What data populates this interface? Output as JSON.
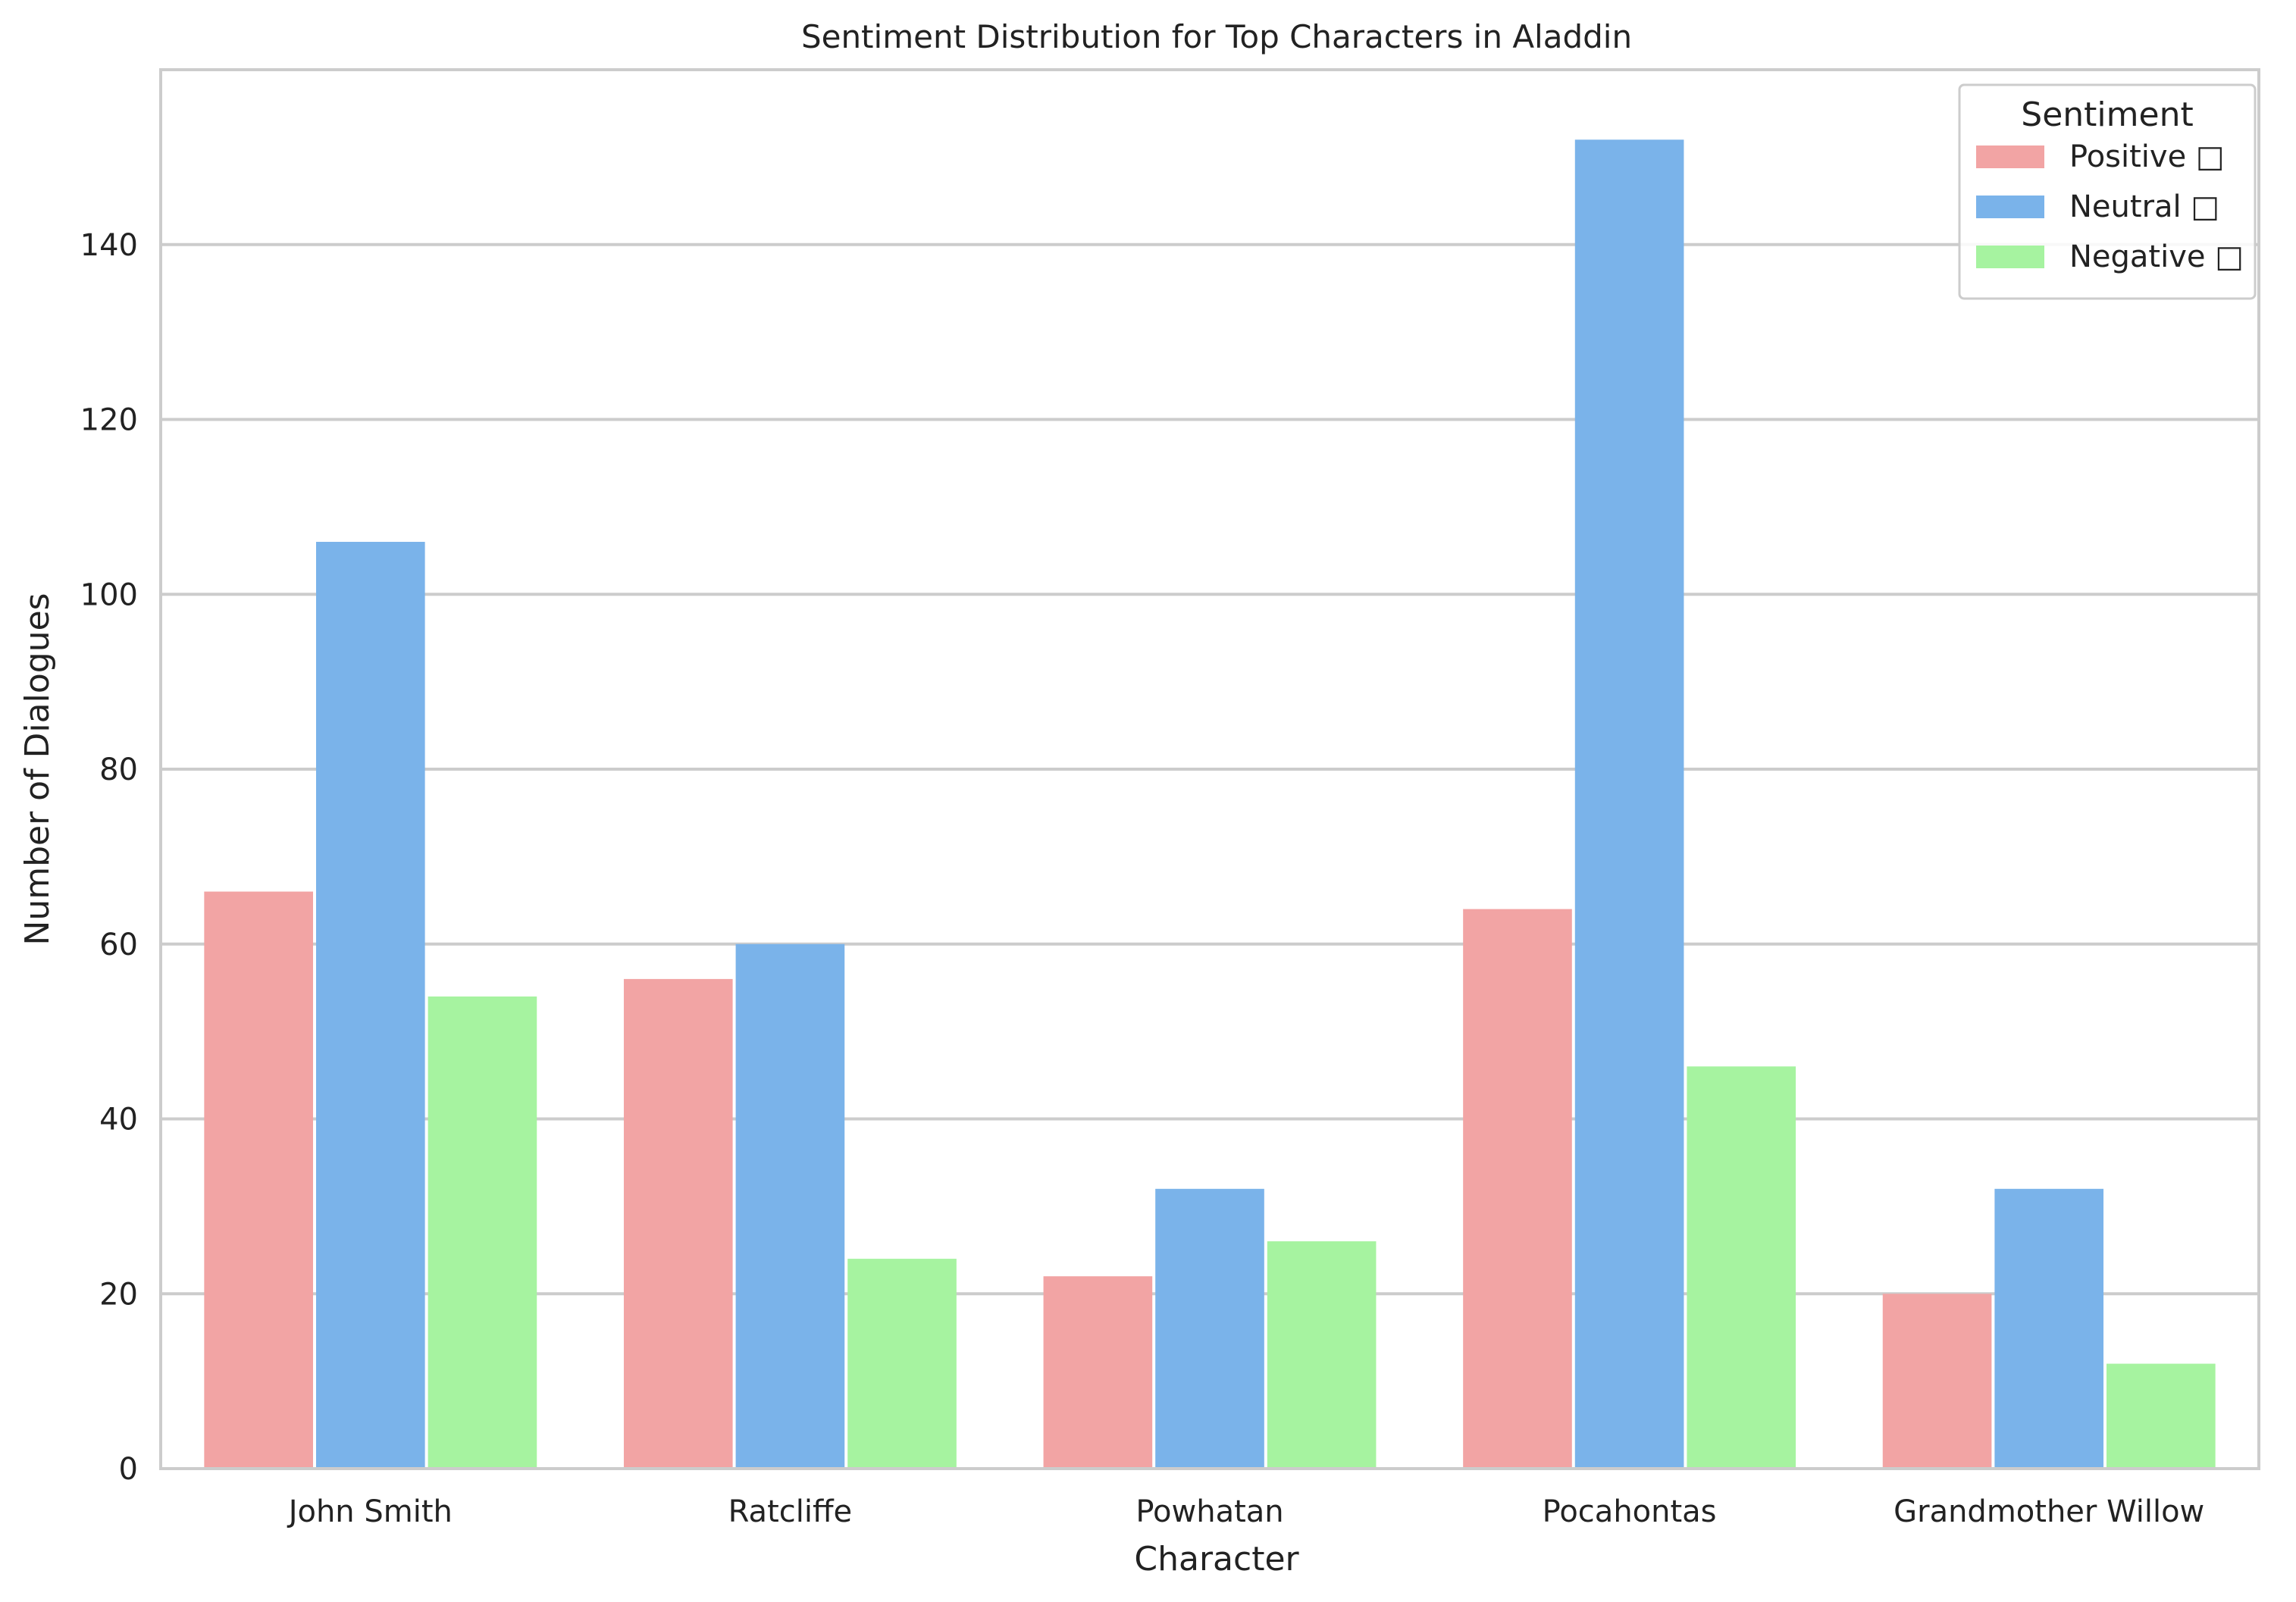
{
  "chart_data": {
    "type": "bar",
    "title": "Sentiment Distribution for Top Characters in Aladdin",
    "xlabel": "Character",
    "ylabel": "Number of Dialogues",
    "categories": [
      "John Smith",
      "Ratcliffe",
      "Powhatan",
      "Pocahontas",
      "Grandmother Willow"
    ],
    "series": [
      {
        "name": "Positive □",
        "color": "#f2a4a4",
        "values": [
          66,
          56,
          22,
          64,
          20
        ]
      },
      {
        "name": "Neutral □",
        "color": "#7ab3ea",
        "values": [
          106,
          60,
          32,
          152,
          32
        ]
      },
      {
        "name": "Negative □",
        "color": "#a6f3a0",
        "values": [
          54,
          24,
          26,
          46,
          12
        ]
      }
    ],
    "ylim": [
      0,
      160
    ],
    "yticks": [
      0,
      20,
      40,
      60,
      80,
      100,
      120,
      140
    ],
    "grid": "horizontal",
    "legend": {
      "title": "Sentiment",
      "placement": "top-right"
    }
  }
}
